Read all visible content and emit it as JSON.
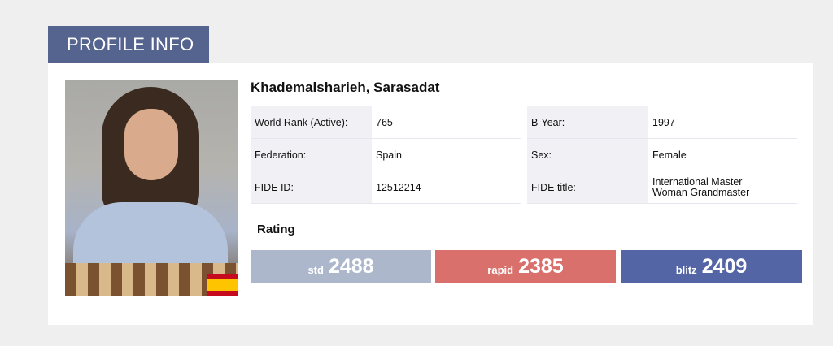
{
  "header": {
    "tab_title": "PROFILE INFO"
  },
  "player": {
    "name": "Khademalsharieh, Sarasadat",
    "flag": "Spain"
  },
  "details_left": [
    {
      "label": "World Rank (Active):",
      "value": "765"
    },
    {
      "label": "Federation:",
      "value": "Spain"
    },
    {
      "label": "FIDE ID:",
      "value": "12512214"
    }
  ],
  "details_right": [
    {
      "label": "B-Year:",
      "value": "1997"
    },
    {
      "label": "Sex:",
      "value": "Female"
    },
    {
      "label": "FIDE title:",
      "value": "International Master",
      "value2": "Woman Grandmaster"
    }
  ],
  "rating": {
    "heading": "Rating",
    "items": [
      {
        "type": "std",
        "value": "2488",
        "color": "#adb7cc"
      },
      {
        "type": "rapid",
        "value": "2385",
        "color": "#d9706b"
      },
      {
        "type": "blitz",
        "value": "2409",
        "color": "#5465a6"
      }
    ]
  }
}
